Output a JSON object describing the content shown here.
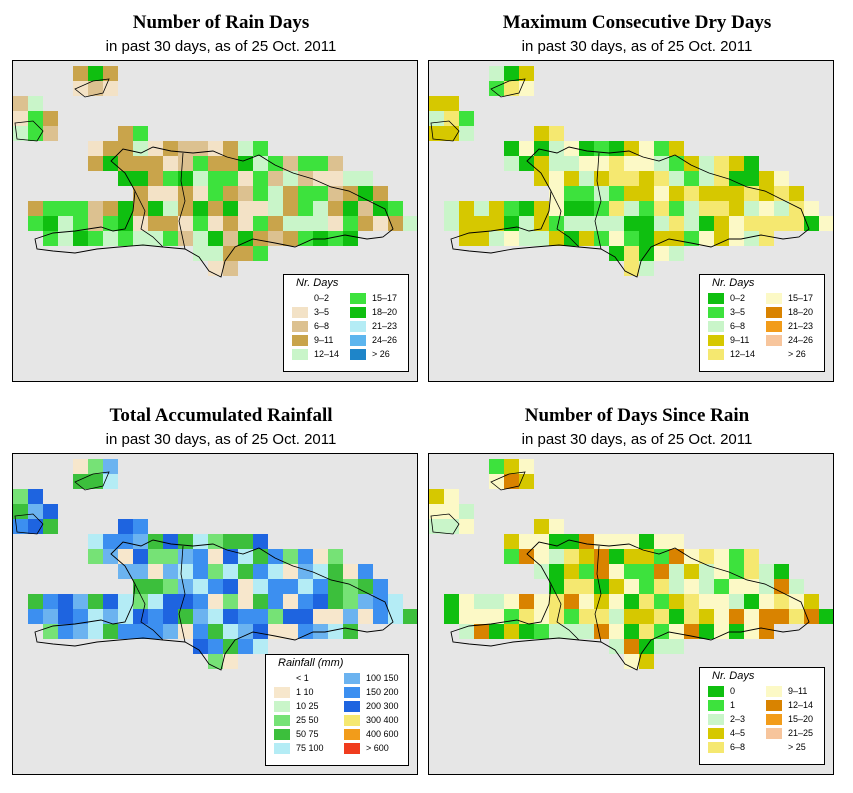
{
  "panels": [
    {
      "title": "Number of Rain Days",
      "subtitle": "in past 30 days, as of  25 Oct. 2011",
      "legend_title": "Nr. Days",
      "legend": [
        {
          "label": "0–2",
          "color": "#ffffff"
        },
        {
          "label": "3–5",
          "color": "#f3e2c6"
        },
        {
          "label": "6–8",
          "color": "#dcc190"
        },
        {
          "label": "9–11",
          "color": "#c9a44b"
        },
        {
          "label": "12–14",
          "color": "#c9f5c9"
        },
        {
          "label": "15–17",
          "color": "#3de23d"
        },
        {
          "label": "18–20",
          "color": "#0fbf10"
        },
        {
          "label": "21–23",
          "color": "#b4ecf5"
        },
        {
          "label": "24–26",
          "color": "#5cb5ee"
        },
        {
          "label": "> 26",
          "color": "#1e85c9"
        }
      ]
    },
    {
      "title": "Maximum Consecutive Dry Days",
      "subtitle": "in past 30 days, as of  25 Oct. 2011",
      "legend_title": "Nr. Days",
      "legend": [
        {
          "label": "0–2",
          "color": "#0fbf10"
        },
        {
          "label": "3–5",
          "color": "#3de23d"
        },
        {
          "label": "6–8",
          "color": "#c9f5c9"
        },
        {
          "label": "9–11",
          "color": "#d6c800"
        },
        {
          "label": "12–14",
          "color": "#f5e870"
        },
        {
          "label": "15–17",
          "color": "#fcf9c6"
        },
        {
          "label": "18–20",
          "color": "#d98300"
        },
        {
          "label": "21–23",
          "color": "#f29c1a"
        },
        {
          "label": "24–26",
          "color": "#f7c59c"
        },
        {
          "label": "> 26",
          "color": "#ffffff"
        }
      ]
    },
    {
      "title": "Total Accumulated Rainfall",
      "subtitle": "in past 30 days, as of  25 Oct. 2011",
      "legend_title": "Rainfall (mm)",
      "legend": [
        {
          "label": "< 1",
          "color": "#ffffff"
        },
        {
          "label": "1    10",
          "color": "#f7e7cc"
        },
        {
          "label": "10   25",
          "color": "#c9f5c9"
        },
        {
          "label": "25   50",
          "color": "#76e276"
        },
        {
          "label": "50   75",
          "color": "#3cbf3c"
        },
        {
          "label": "75  100",
          "color": "#b4ecf5"
        },
        {
          "label": "100  150",
          "color": "#6bb3f0"
        },
        {
          "label": "150  200",
          "color": "#3c8ff0"
        },
        {
          "label": "200  300",
          "color": "#1e64e0"
        },
        {
          "label": "300  400",
          "color": "#f5e870"
        },
        {
          "label": "400  600",
          "color": "#f29c1a"
        },
        {
          "label": "> 600",
          "color": "#f03c1e"
        }
      ]
    },
    {
      "title": "Number of Days Since Rain",
      "subtitle": "in past 30 days, as of  25 Oct. 2011",
      "legend_title": "Nr. Days",
      "legend": [
        {
          "label": "0",
          "color": "#0fbf10"
        },
        {
          "label": "1",
          "color": "#3de23d"
        },
        {
          "label": "2–3",
          "color": "#c9f5c9"
        },
        {
          "label": "4–5",
          "color": "#d6c800"
        },
        {
          "label": "6–8",
          "color": "#f5e870"
        },
        {
          "label": "9–11",
          "color": "#fcf9c6"
        },
        {
          "label": "12–14",
          "color": "#d98300"
        },
        {
          "label": "15–20",
          "color": "#f29c1a"
        },
        {
          "label": "21–25",
          "color": "#f7c59c"
        },
        {
          "label": "> 25",
          "color": "#ffffff"
        }
      ]
    }
  ]
}
